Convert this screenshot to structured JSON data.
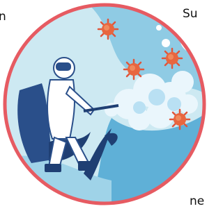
{
  "texts": {
    "top_left": "n",
    "top_right": "Su",
    "bottom_right": "ne"
  }
}
